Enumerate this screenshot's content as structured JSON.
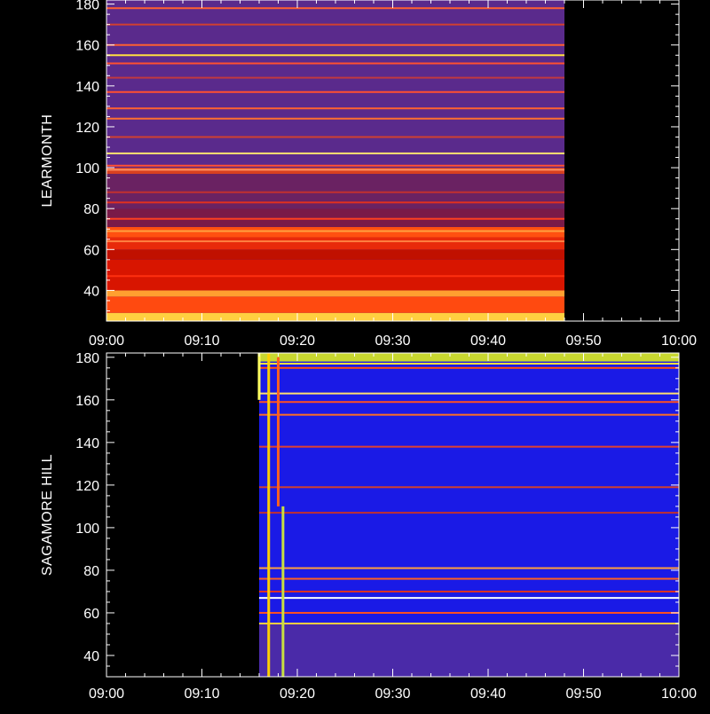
{
  "chart_data": [
    {
      "type": "heatmap",
      "ylabel": "LEARMONTH",
      "xlabel": "",
      "title": "",
      "xlim": [
        "09:00",
        "10:00"
      ],
      "ylim": [
        25,
        182
      ],
      "x_ticks": [
        "09:00",
        "09:10",
        "09:20",
        "09:30",
        "09:40",
        "09:50",
        "10:00"
      ],
      "y_ticks": [
        40,
        60,
        80,
        100,
        120,
        140,
        160,
        180
      ],
      "data_coverage": {
        "start": "09:00",
        "end": "09:48"
      },
      "background": "#5a2a8c",
      "bands": [
        {
          "from": 25,
          "to": 29,
          "color": "#ffd040"
        },
        {
          "from": 29,
          "to": 37,
          "color": "#ff4a10"
        },
        {
          "from": 37,
          "to": 40,
          "color": "#ffa030"
        },
        {
          "from": 40,
          "to": 55,
          "color": "#d81500"
        },
        {
          "from": 55,
          "to": 60,
          "color": "#c01000"
        },
        {
          "from": 60,
          "to": 66,
          "color": "#e82a0a"
        },
        {
          "from": 66,
          "to": 71,
          "color": "#ff5010"
        },
        {
          "from": 71,
          "to": 80,
          "color": "#7a1a48"
        },
        {
          "from": 80,
          "to": 97,
          "color": "#6a2262"
        },
        {
          "from": 97,
          "to": 100,
          "color": "#d84020"
        },
        {
          "from": 100,
          "to": 182,
          "color": "#5a2a8c"
        }
      ],
      "lines": [
        {
          "f": 178,
          "color": "#ff6030"
        },
        {
          "f": 170,
          "color": "#d04030"
        },
        {
          "f": 160,
          "color": "#ff6030"
        },
        {
          "f": 155,
          "color": "#ffe040"
        },
        {
          "f": 151,
          "color": "#ff5030"
        },
        {
          "f": 144,
          "color": "#c03840"
        },
        {
          "f": 137,
          "color": "#ff5030"
        },
        {
          "f": 129,
          "color": "#ff6030"
        },
        {
          "f": 124,
          "color": "#ff7030"
        },
        {
          "f": 115,
          "color": "#d04030"
        },
        {
          "f": 107,
          "color": "#ffe070"
        },
        {
          "f": 101,
          "color": "#ff5030"
        },
        {
          "f": 99,
          "color": "#ff9060"
        },
        {
          "f": 88,
          "color": "#c03030"
        },
        {
          "f": 83,
          "color": "#e03020"
        },
        {
          "f": 75,
          "color": "#ff4020"
        },
        {
          "f": 69,
          "color": "#ffa040"
        },
        {
          "f": 64,
          "color": "#ff8040"
        },
        {
          "f": 47,
          "color": "#ff3010"
        }
      ]
    },
    {
      "type": "heatmap",
      "ylabel": "SAGAMORE HILL",
      "xlabel": "",
      "title": "",
      "xlim": [
        "09:00",
        "10:00"
      ],
      "ylim": [
        30,
        182
      ],
      "x_ticks": [
        "09:00",
        "09:10",
        "09:20",
        "09:30",
        "09:40",
        "09:50",
        "10:00"
      ],
      "y_ticks": [
        40,
        60,
        80,
        100,
        120,
        140,
        160,
        180
      ],
      "data_coverage": {
        "start": "09:16",
        "end": "10:00"
      },
      "background": "#1a1ae6",
      "bands": [
        {
          "from": 30,
          "to": 55,
          "color": "#4a2aa8"
        },
        {
          "from": 178,
          "to": 182,
          "color": "#c8d830"
        }
      ],
      "lines": [
        {
          "f": 177,
          "color": "#ffe040"
        },
        {
          "f": 175,
          "color": "#ff5010"
        },
        {
          "f": 163,
          "color": "#ffe070"
        },
        {
          "f": 159,
          "color": "#ff5020"
        },
        {
          "f": 153,
          "color": "#ff7020"
        },
        {
          "f": 138,
          "color": "#e04030"
        },
        {
          "f": 119,
          "color": "#d04030"
        },
        {
          "f": 107,
          "color": "#c03030"
        },
        {
          "f": 81,
          "color": "#ffa040"
        },
        {
          "f": 76,
          "color": "#ff6020"
        },
        {
          "f": 70,
          "color": "#e03020"
        },
        {
          "f": 67,
          "color": "#ffffff"
        },
        {
          "f": 60,
          "color": "#ff5020"
        },
        {
          "f": 55,
          "color": "#ffd040"
        }
      ],
      "bursts": [
        {
          "t": "09:16",
          "from": 160,
          "to": 182,
          "color": "#ffff60"
        },
        {
          "t": "09:17",
          "from": 30,
          "to": 182,
          "color": "#ffd000"
        },
        {
          "t": "09:18",
          "from": 110,
          "to": 180,
          "color": "#ff6020"
        },
        {
          "t": "09:18.5",
          "from": 30,
          "to": 110,
          "color": "#c8e040"
        }
      ]
    }
  ]
}
